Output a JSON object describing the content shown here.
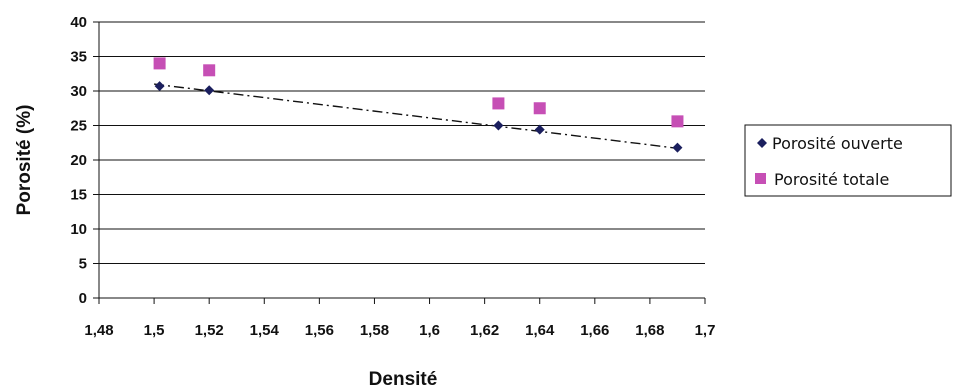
{
  "chart_data": {
    "type": "scatter",
    "xlabel": "Densité",
    "ylabel": "Porosité (%)",
    "xlim": [
      1.48,
      1.7
    ],
    "ylim": [
      0,
      40
    ],
    "x_ticks": [
      "1,48",
      "1,5",
      "1,52",
      "1,54",
      "1,56",
      "1,58",
      "1,6",
      "1,62",
      "1,64",
      "1,66",
      "1,68",
      "1,7"
    ],
    "y_ticks": [
      "0",
      "5",
      "10",
      "15",
      "20",
      "25",
      "30",
      "35",
      "40"
    ],
    "grid": "horizontal",
    "legend_position": "right",
    "series": [
      {
        "name": "Porosité ouverte",
        "marker": "diamond",
        "color": "#1b1f5e",
        "x": [
          1.502,
          1.52,
          1.625,
          1.64,
          1.69
        ],
        "y": [
          30.7,
          30.1,
          25.0,
          24.4,
          21.8
        ]
      },
      {
        "name": "Porosité totale",
        "marker": "square",
        "color": "#c64fb5",
        "x": [
          1.502,
          1.52,
          1.625,
          1.64,
          1.69
        ],
        "y": [
          34.0,
          33.0,
          28.2,
          27.5,
          25.6
        ]
      }
    ],
    "trendline": {
      "series": "Porosité ouverte",
      "style": "dash-dot",
      "color": "#111111",
      "x": [
        1.5,
        1.69
      ],
      "y": [
        31.0,
        21.7
      ]
    }
  }
}
